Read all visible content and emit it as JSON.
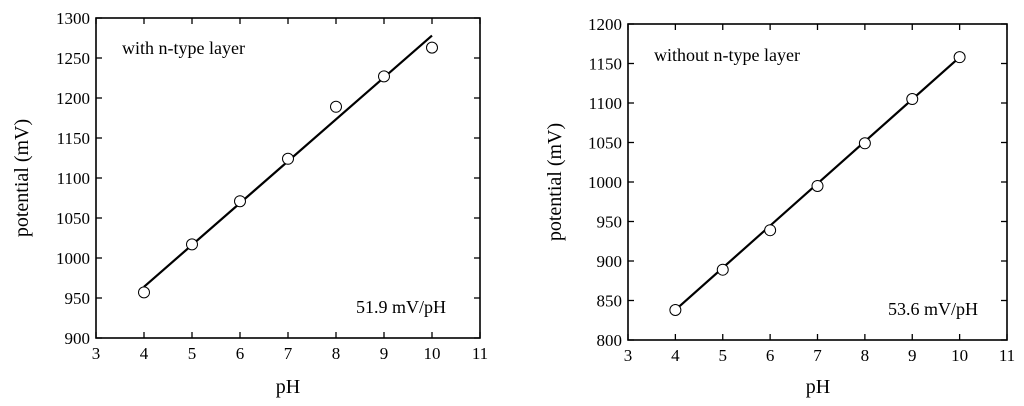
{
  "chart_data": [
    {
      "type": "scatter",
      "annotation": "with n-type layer",
      "slope_label": "51.9 mV/pH",
      "xlabel": "pH",
      "ylabel": "potential (mV)",
      "xlim": [
        3,
        11
      ],
      "ylim": [
        900,
        1300
      ],
      "xticks": [
        3,
        4,
        5,
        6,
        7,
        8,
        9,
        10,
        11
      ],
      "yticks": [
        900,
        950,
        1000,
        1050,
        1100,
        1150,
        1200,
        1250,
        1300
      ],
      "points": [
        {
          "x": 4,
          "y": 957
        },
        {
          "x": 5,
          "y": 1017
        },
        {
          "x": 6,
          "y": 1071
        },
        {
          "x": 7,
          "y": 1124
        },
        {
          "x": 8,
          "y": 1189
        },
        {
          "x": 9,
          "y": 1227
        },
        {
          "x": 10,
          "y": 1263
        }
      ],
      "fit": [
        {
          "x": 4,
          "y": 964
        },
        {
          "x": 10,
          "y": 1278
        }
      ]
    },
    {
      "type": "scatter",
      "annotation": "without n-type layer",
      "slope_label": "53.6 mV/pH",
      "xlabel": "pH",
      "ylabel": "potential (mV)",
      "xlim": [
        3,
        11
      ],
      "ylim": [
        800,
        1200
      ],
      "xticks": [
        3,
        4,
        5,
        6,
        7,
        8,
        9,
        10,
        11
      ],
      "yticks": [
        800,
        850,
        900,
        950,
        1000,
        1050,
        1100,
        1150,
        1200
      ],
      "points": [
        {
          "x": 4,
          "y": 838
        },
        {
          "x": 5,
          "y": 889
        },
        {
          "x": 6,
          "y": 939
        },
        {
          "x": 7,
          "y": 995
        },
        {
          "x": 8,
          "y": 1049
        },
        {
          "x": 9,
          "y": 1105
        },
        {
          "x": 10,
          "y": 1158
        }
      ],
      "fit": [
        {
          "x": 4,
          "y": 838
        },
        {
          "x": 10,
          "y": 1158
        }
      ]
    }
  ]
}
